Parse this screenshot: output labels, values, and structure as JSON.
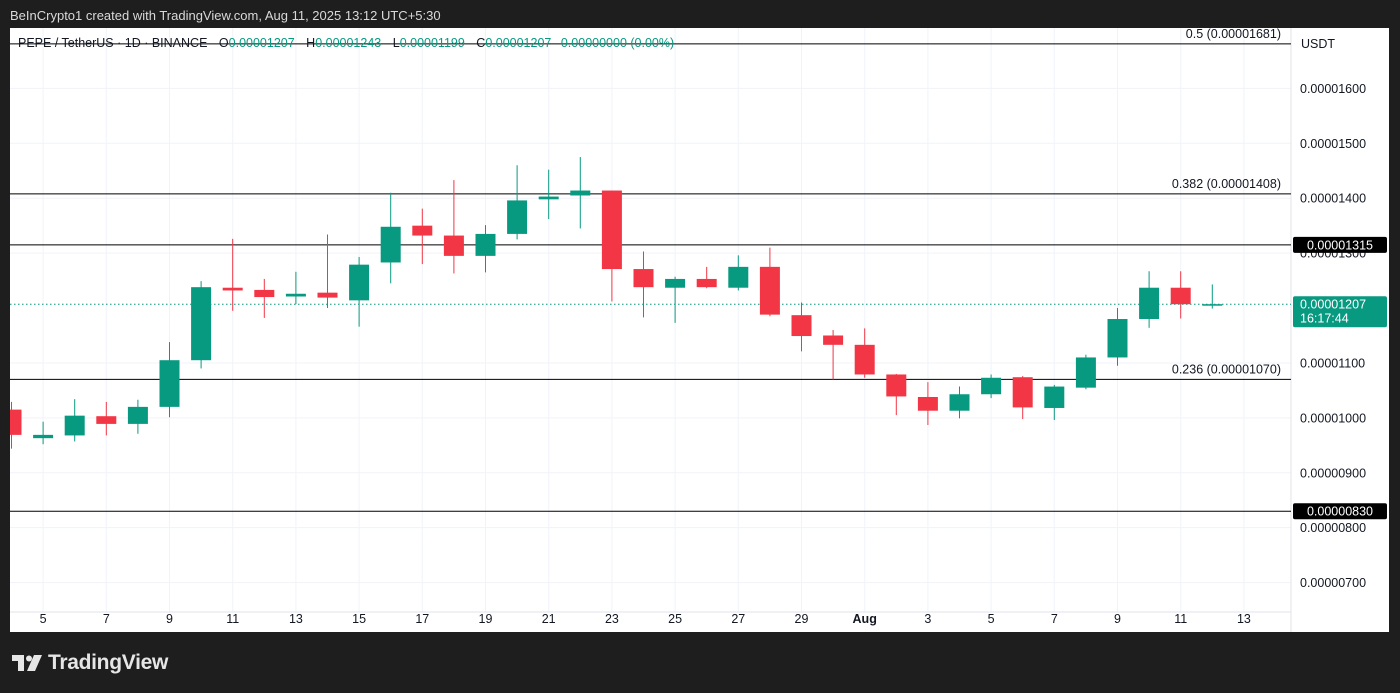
{
  "header": {
    "caption": "BeInCrypto1 created with TradingView.com, Aug 11, 2025 13:12 UTC+5:30"
  },
  "legend": {
    "symbol": "PEPE / TetherUS · 1D · BINANCE",
    "open_label": "O",
    "open": "0.00001207",
    "high_label": "H",
    "high": "0.00001243",
    "low_label": "L",
    "low": "0.00001199",
    "close_label": "C",
    "close": "0.00001207",
    "change": "0.00000000 (0.00%)"
  },
  "brand": {
    "logo_text": "TradingView",
    "logo_icon": "tradingview-logo-icon"
  },
  "colors": {
    "up": "#089981",
    "down": "#f23645",
    "grid": "#f0f3fa",
    "text": "#131722",
    "line": "#000000"
  },
  "chart_data": {
    "type": "candlestick",
    "currency": "USDT",
    "ylim": [
      6.1e-06,
      1.71e-05
    ],
    "y_ticks": [
      "0.00001600",
      "0.00001500",
      "0.00001400",
      "0.00001300",
      "0.00001100",
      "0.00001000",
      "0.00000900",
      "0.00000800",
      "0.00000700"
    ],
    "y_tick_values": [
      1.6e-05,
      1.5e-05,
      1.4e-05,
      1.3e-05,
      1.1e-05,
      1e-05,
      9e-06,
      8e-06,
      7e-06
    ],
    "x_ticks": [
      {
        "i": 1,
        "label": "5"
      },
      {
        "i": 3,
        "label": "7"
      },
      {
        "i": 5,
        "label": "9"
      },
      {
        "i": 7,
        "label": "11"
      },
      {
        "i": 9,
        "label": "13"
      },
      {
        "i": 11,
        "label": "15"
      },
      {
        "i": 13,
        "label": "17"
      },
      {
        "i": 15,
        "label": "19"
      },
      {
        "i": 17,
        "label": "21"
      },
      {
        "i": 19,
        "label": "23"
      },
      {
        "i": 21,
        "label": "25"
      },
      {
        "i": 23,
        "label": "27"
      },
      {
        "i": 25,
        "label": "29"
      },
      {
        "i": 27,
        "label": "Aug",
        "bold": true
      },
      {
        "i": 29,
        "label": "3"
      },
      {
        "i": 31,
        "label": "5"
      },
      {
        "i": 33,
        "label": "7"
      },
      {
        "i": 35,
        "label": "9"
      },
      {
        "i": 37,
        "label": "11"
      },
      {
        "i": 39,
        "label": "13"
      }
    ],
    "candles": [
      {
        "o": 1.015e-05,
        "h": 1.029e-05,
        "l": 9.44e-06,
        "c": 9.69e-06
      },
      {
        "o": 9.63e-06,
        "h": 9.93e-06,
        "l": 9.52e-06,
        "c": 9.69e-06
      },
      {
        "o": 9.68e-06,
        "h": 1.034e-05,
        "l": 9.57e-06,
        "c": 1.004e-05
      },
      {
        "o": 1.003e-05,
        "h": 1.029e-05,
        "l": 9.68e-06,
        "c": 9.89e-06
      },
      {
        "o": 9.89e-06,
        "h": 1.033e-05,
        "l": 9.71e-06,
        "c": 1.02e-05
      },
      {
        "o": 1.02e-05,
        "h": 1.138e-05,
        "l": 1.001e-05,
        "c": 1.105e-05
      },
      {
        "o": 1.105e-05,
        "h": 1.249e-05,
        "l": 1.09e-05,
        "c": 1.238e-05
      },
      {
        "o": 1.237e-05,
        "h": 1.326e-05,
        "l": 1.195e-05,
        "c": 1.232e-05
      },
      {
        "o": 1.233e-05,
        "h": 1.253e-05,
        "l": 1.182e-05,
        "c": 1.22e-05
      },
      {
        "o": 1.221e-05,
        "h": 1.266e-05,
        "l": 1.207e-05,
        "c": 1.226e-05
      },
      {
        "o": 1.228e-05,
        "h": 1.334e-05,
        "l": 1.2e-05,
        "c": 1.219e-05
      },
      {
        "o": 1.214e-05,
        "h": 1.293e-05,
        "l": 1.166e-05,
        "c": 1.279e-05
      },
      {
        "o": 1.283e-05,
        "h": 1.41e-05,
        "l": 1.245e-05,
        "c": 1.348e-05
      },
      {
        "o": 1.35e-05,
        "h": 1.381e-05,
        "l": 1.28e-05,
        "c": 1.332e-05
      },
      {
        "o": 1.332e-05,
        "h": 1.433e-05,
        "l": 1.263e-05,
        "c": 1.295e-05
      },
      {
        "o": 1.295e-05,
        "h": 1.351e-05,
        "l": 1.265e-05,
        "c": 1.335e-05
      },
      {
        "o": 1.335e-05,
        "h": 1.46e-05,
        "l": 1.325e-05,
        "c": 1.396e-05
      },
      {
        "o": 1.398e-05,
        "h": 1.452e-05,
        "l": 1.362e-05,
        "c": 1.403e-05
      },
      {
        "o": 1.405e-05,
        "h": 1.475e-05,
        "l": 1.345e-05,
        "c": 1.414e-05
      },
      {
        "o": 1.414e-05,
        "h": 1.414e-05,
        "l": 1.212e-05,
        "c": 1.271e-05
      },
      {
        "o": 1.271e-05,
        "h": 1.303e-05,
        "l": 1.183e-05,
        "c": 1.238e-05
      },
      {
        "o": 1.237e-05,
        "h": 1.257e-05,
        "l": 1.173e-05,
        "c": 1.253e-05
      },
      {
        "o": 1.253e-05,
        "h": 1.275e-05,
        "l": 1.236e-05,
        "c": 1.238e-05
      },
      {
        "o": 1.237e-05,
        "h": 1.296e-05,
        "l": 1.232e-05,
        "c": 1.275e-05
      },
      {
        "o": 1.275e-05,
        "h": 1.31e-05,
        "l": 1.185e-05,
        "c": 1.188e-05
      },
      {
        "o": 1.187e-05,
        "h": 1.21e-05,
        "l": 1.121e-05,
        "c": 1.149e-05
      },
      {
        "o": 1.15e-05,
        "h": 1.16e-05,
        "l": 1.07e-05,
        "c": 1.133e-05
      },
      {
        "o": 1.133e-05,
        "h": 1.163e-05,
        "l": 1.073e-05,
        "c": 1.079e-05
      },
      {
        "o": 1.079e-05,
        "h": 1.08e-05,
        "l": 1.005e-05,
        "c": 1.039e-05
      },
      {
        "o": 1.038e-05,
        "h": 1.065e-05,
        "l": 9.87e-06,
        "c": 1.013e-05
      },
      {
        "o": 1.013e-05,
        "h": 1.057e-05,
        "l": 9.99e-06,
        "c": 1.043e-05
      },
      {
        "o": 1.043e-05,
        "h": 1.079e-05,
        "l": 1.036e-05,
        "c": 1.073e-05
      },
      {
        "o": 1.074e-05,
        "h": 1.076e-05,
        "l": 9.98e-06,
        "c": 1.019e-05
      },
      {
        "o": 1.018e-05,
        "h": 1.06e-05,
        "l": 9.96e-06,
        "c": 1.057e-05
      },
      {
        "o": 1.055e-05,
        "h": 1.115e-05,
        "l": 1.052e-05,
        "c": 1.11e-05
      },
      {
        "o": 1.11e-05,
        "h": 1.2e-05,
        "l": 1.095e-05,
        "c": 1.18e-05
      },
      {
        "o": 1.18e-05,
        "h": 1.267e-05,
        "l": 1.164e-05,
        "c": 1.237e-05
      },
      {
        "o": 1.237e-05,
        "h": 1.267e-05,
        "l": 1.181e-05,
        "c": 1.207e-05
      },
      {
        "o": 1.207e-05,
        "h": 1.243e-05,
        "l": 1.199e-05,
        "c": 1.207e-05
      }
    ],
    "fib_levels": [
      {
        "label": "0.5 (0.00001681)",
        "value": 1.681e-05
      },
      {
        "label": "0.382 (0.00001408)",
        "value": 1.408e-05
      },
      {
        "label": "0.236 (0.00001070)",
        "value": 1.07e-05
      }
    ],
    "marked_levels": [
      {
        "label": "0.00001315",
        "value": 1.315e-05
      },
      {
        "label": "0.00000830",
        "value": 8.3e-06
      }
    ],
    "last_price": {
      "label": "0.00001207",
      "value": 1.207e-05,
      "countdown": "16:17:44"
    },
    "grid": true
  }
}
